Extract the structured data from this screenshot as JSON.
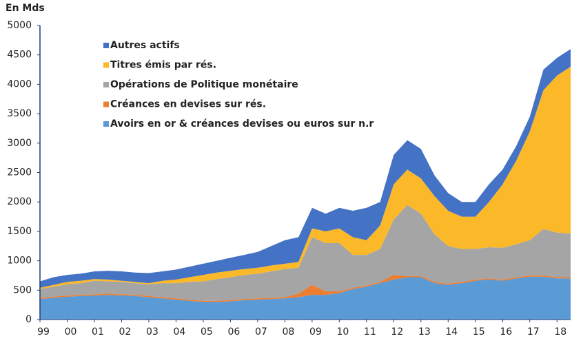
{
  "chart_data": {
    "type": "stacked_area",
    "ylabel": "En Mds",
    "categories": [
      "99",
      null,
      "00",
      null,
      "01",
      null,
      "02",
      null,
      "03",
      null,
      "04",
      null,
      "05",
      null,
      "06",
      null,
      "07",
      null,
      "08",
      null,
      "09",
      null,
      "10",
      null,
      "11",
      null,
      "12",
      null,
      "13",
      null,
      "14",
      null,
      "15",
      null,
      "16",
      null,
      "17",
      null,
      "18",
      null
    ],
    "ylim": [
      0,
      5000
    ],
    "yticks": [
      0,
      500,
      1000,
      1500,
      2000,
      2500,
      3000,
      3500,
      4000,
      4500,
      5000
    ],
    "legend": "top-left",
    "series": [
      {
        "name": "Avoirs en or & créances devises ou euros sur n.r",
        "color": "#5b9bd5",
        "values": [
          350,
          370,
          390,
          400,
          410,
          420,
          410,
          400,
          380,
          360,
          340,
          320,
          300,
          300,
          310,
          330,
          340,
          350,
          360,
          380,
          420,
          420,
          450,
          520,
          560,
          620,
          680,
          720,
          720,
          620,
          590,
          620,
          660,
          680,
          660,
          700,
          730,
          730,
          700,
          700
        ]
      },
      {
        "name": "Créances en devises sur rés.",
        "color": "#ed7d31",
        "values": [
          20,
          20,
          20,
          20,
          20,
          20,
          20,
          20,
          20,
          20,
          20,
          20,
          20,
          20,
          20,
          20,
          20,
          20,
          20,
          60,
          170,
          60,
          30,
          20,
          20,
          20,
          80,
          20,
          20,
          20,
          20,
          20,
          20,
          20,
          20,
          20,
          20,
          20,
          20,
          20
        ]
      },
      {
        "name": "Opérations de Politique monétaire",
        "color": "#a5a5a5",
        "values": [
          150,
          170,
          190,
          200,
          230,
          210,
          210,
          200,
          200,
          240,
          260,
          300,
          330,
          370,
          390,
          410,
          420,
          450,
          480,
          440,
          810,
          820,
          820,
          560,
          520,
          560,
          940,
          1210,
          1060,
          810,
          640,
          560,
          520,
          530,
          540,
          560,
          600,
          790,
          760,
          740
        ]
      },
      {
        "name": "Titres émis par rés.",
        "color": "#fbb829",
        "values": [
          20,
          30,
          40,
          40,
          30,
          30,
          20,
          20,
          20,
          40,
          60,
          80,
          110,
          110,
          110,
          100,
          100,
          100,
          90,
          100,
          150,
          200,
          250,
          300,
          250,
          400,
          600,
          600,
          600,
          650,
          600,
          550,
          550,
          770,
          1080,
          1420,
          1850,
          2360,
          2670,
          2840
        ]
      },
      {
        "name": "Autres actifs",
        "color": "#4472c4",
        "values": [
          110,
          130,
          120,
          120,
          130,
          150,
          160,
          160,
          170,
          160,
          170,
          180,
          190,
          200,
          220,
          240,
          270,
          330,
          400,
          420,
          350,
          300,
          350,
          450,
          550,
          400,
          500,
          500,
          500,
          350,
          300,
          250,
          250,
          300,
          250,
          250,
          250,
          350,
          300,
          300
        ]
      }
    ]
  }
}
